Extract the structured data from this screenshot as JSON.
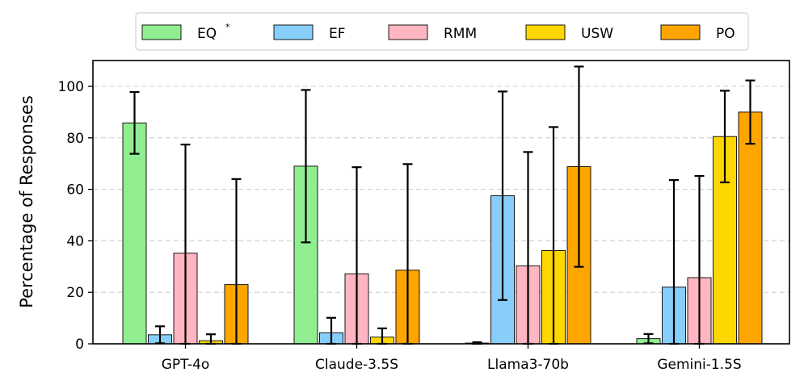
{
  "chart_data": {
    "type": "bar",
    "title": "",
    "xlabel": "",
    "ylabel": "Percentage of Responses",
    "ylim": [
      0,
      110
    ],
    "yticks": [
      0,
      20,
      40,
      60,
      80,
      100
    ],
    "grid": "y-dashed",
    "legend_position": "top-center",
    "categories": [
      "GPT-4o",
      "Claude-3.5S",
      "Llama3-70b",
      "Gemini-1.5S"
    ],
    "series": [
      {
        "name": "EQ",
        "superscript": "*",
        "color": "#90EE90",
        "values": [
          85.8,
          69.0,
          0.3,
          2.0
        ],
        "errors": [
          12.0,
          29.6,
          0.3,
          1.8
        ]
      },
      {
        "name": "EF",
        "color": "#87CEFA",
        "values": [
          3.5,
          4.3,
          57.5,
          22.0
        ],
        "errors": [
          3.3,
          5.8,
          40.5,
          41.6
        ]
      },
      {
        "name": "RMM",
        "color": "#FFB6C1",
        "values": [
          35.2,
          27.2,
          30.3,
          25.7
        ],
        "errors": [
          42.2,
          41.4,
          44.2,
          39.5
        ]
      },
      {
        "name": "USW",
        "color": "#FFD700",
        "values": [
          1.2,
          2.6,
          36.2,
          80.5
        ],
        "errors": [
          2.5,
          3.4,
          48.0,
          17.8
        ]
      },
      {
        "name": "PO",
        "color": "#FFA500",
        "values": [
          23.0,
          28.6,
          68.8,
          90.0
        ],
        "errors": [
          41.0,
          41.2,
          38.9,
          12.3
        ]
      }
    ]
  }
}
